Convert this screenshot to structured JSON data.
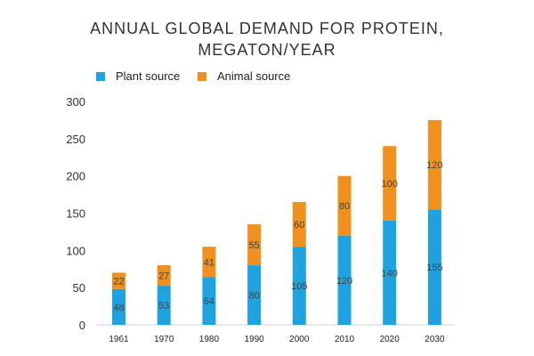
{
  "chart_data": {
    "type": "bar",
    "stacked": true,
    "title_lines": [
      "ANNUAL GLOBAL DEMAND FOR PROTEIN,",
      "MEGATON/YEAR"
    ],
    "categories": [
      "1961",
      "1970",
      "1980",
      "1990",
      "2000",
      "2010",
      "2020",
      "2030"
    ],
    "series": [
      {
        "name": "Plant source",
        "color": "#1FA3E0",
        "values": [
          48,
          53,
          64,
          80,
          105,
          120,
          140,
          155
        ]
      },
      {
        "name": "Animal source",
        "color": "#F0901E",
        "values": [
          22,
          27,
          41,
          55,
          60,
          80,
          100,
          120
        ]
      }
    ],
    "y_ticks": [
      "0",
      "50",
      "100",
      "150",
      "200",
      "250",
      "300"
    ],
    "ylim": [
      0,
      300
    ],
    "grid": false,
    "legend_position": "top-left"
  }
}
